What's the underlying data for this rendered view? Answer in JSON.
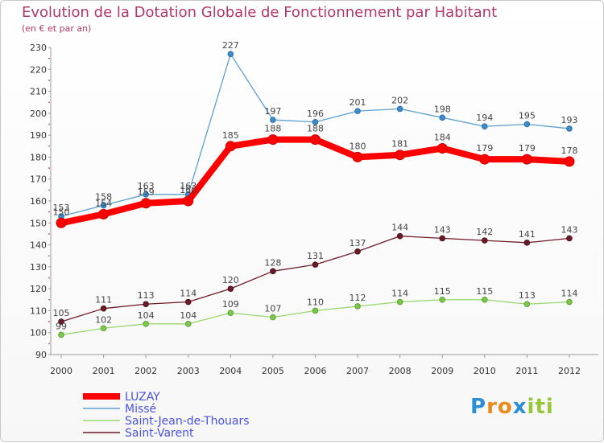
{
  "title": "Evolution de la Dotation Globale de Fonctionnement par Habitant",
  "subtitle": "(en € et par an)",
  "chart_data": {
    "type": "line",
    "title": "Evolution de la Dotation Globale de Fonctionnement par Habitant",
    "subtitle": "(en € et par an)",
    "xlabel": "",
    "ylabel": "",
    "x": [
      "2000",
      "2001",
      "2002",
      "2003",
      "2004",
      "2005",
      "2006",
      "2007",
      "2008",
      "2009",
      "2010",
      "2011",
      "2012"
    ],
    "ylim": [
      90,
      230
    ],
    "yticks": [
      90,
      100,
      110,
      120,
      130,
      140,
      150,
      160,
      170,
      180,
      190,
      200,
      210,
      220,
      230
    ],
    "grid": false,
    "legend_position": "bottom-left",
    "series": [
      {
        "name": "LUZAY",
        "color": "#ff0000",
        "values": [
          150,
          154,
          159,
          160,
          185,
          188,
          188,
          180,
          181,
          184,
          179,
          179,
          178
        ]
      },
      {
        "name": "Missé",
        "color": "#5aa0d2",
        "values": [
          153,
          158,
          163,
          163,
          227,
          197,
          196,
          201,
          202,
          198,
          194,
          195,
          193
        ]
      },
      {
        "name": "Saint-Jean-de-Thouars",
        "color": "#98d86e",
        "values": [
          99,
          102,
          104,
          104,
          109,
          107,
          110,
          112,
          114,
          115,
          115,
          113,
          114
        ]
      },
      {
        "name": "Saint-Varent",
        "color": "#6e1a28",
        "values": [
          105,
          111,
          113,
          114,
          120,
          128,
          131,
          137,
          144,
          143,
          142,
          141,
          143
        ]
      }
    ]
  },
  "legend": {
    "items": [
      "LUZAY",
      "Missé",
      "Saint-Jean-de-Thouars",
      "Saint-Varent"
    ],
    "text_color": "#4a52e0"
  },
  "logo": {
    "letters": [
      "P",
      "r",
      "o",
      "x",
      "i",
      "t",
      "i"
    ],
    "colors": [
      "#2c8fd6",
      "#e88b1c",
      "#e88b1c",
      "#2c8fd6",
      "#98c83a",
      "#98c83a",
      "#98c83a"
    ]
  }
}
